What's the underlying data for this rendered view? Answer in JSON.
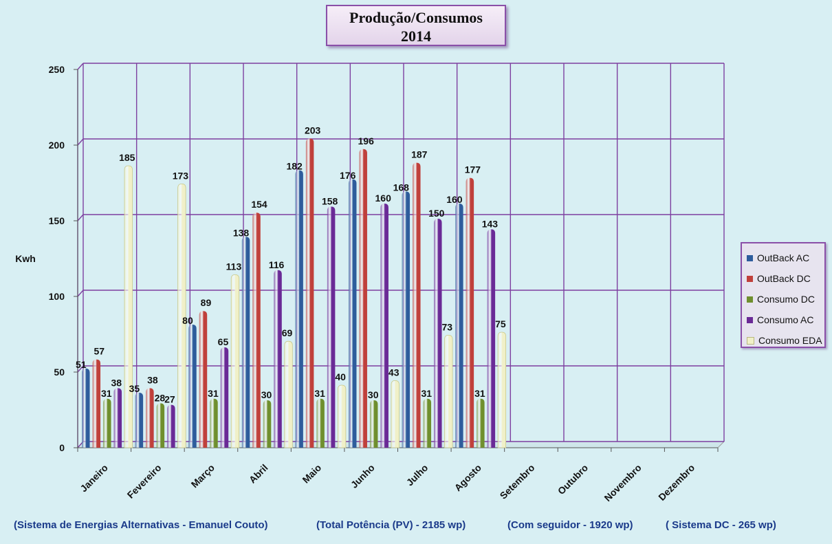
{
  "chart_data": {
    "type": "bar",
    "title": "Produção/Consumos",
    "subtitle": "2014",
    "ylabel": "Kwh",
    "xlabel": "",
    "ylim": [
      0,
      250
    ],
    "yticks": [
      0,
      50,
      100,
      150,
      200,
      250
    ],
    "grid": true,
    "legend_position": "right",
    "categories": [
      "Janeiro",
      "Fevereiro",
      "Março",
      "Abril",
      "Maio",
      "Junho",
      "Julho",
      "Agosto",
      "Setembro",
      "Outubro",
      "Novembro",
      "Dezembro"
    ],
    "series": [
      {
        "name": "OutBack AC",
        "color": "#2e5c9c",
        "values": [
          51,
          35,
          80,
          138,
          182,
          176,
          168,
          160,
          null,
          null,
          null,
          null
        ]
      },
      {
        "name": "OutBack DC",
        "color": "#c0403b",
        "values": [
          57,
          38,
          89,
          154,
          203,
          196,
          187,
          177,
          null,
          null,
          null,
          null
        ]
      },
      {
        "name": "Consumo DC",
        "color": "#6f8f2e",
        "values": [
          31,
          28,
          31,
          30,
          31,
          30,
          31,
          31,
          null,
          null,
          null,
          null
        ]
      },
      {
        "name": "Consumo AC",
        "color": "#6a2a96",
        "values": [
          38,
          27,
          65,
          116,
          158,
          160,
          150,
          143,
          null,
          null,
          null,
          null
        ]
      },
      {
        "name": "Consumo EDA",
        "color": "#f0f0c8",
        "values": [
          185,
          173,
          113,
          69,
          40,
          43,
          73,
          75,
          null,
          null,
          null,
          null
        ]
      }
    ]
  },
  "footer": {
    "system": "(Sistema de Energias Alternativas  - Emanuel Couto)",
    "power": "(Total Potência (PV) - 2185 wp)",
    "tracker": "(Com seguidor - 1920 wp)",
    "dc": "( Sistema DC - 265 wp)"
  }
}
